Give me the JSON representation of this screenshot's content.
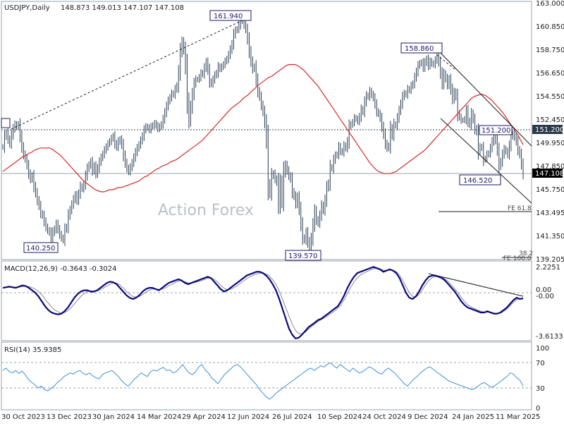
{
  "chart_data": [
    {
      "type": "candlestick",
      "title": "USDJPY,Daily",
      "ohlc_label": "148.873 149.013 147.107 147.108",
      "watermark": "Action Forex",
      "y_ticks": [
        "163.000",
        "160.850",
        "158.750",
        "156.650",
        "154.550",
        "152.450",
        "151.200",
        "149.950",
        "147.850",
        "147.108",
        "145.750",
        "143.495",
        "141.350",
        "139.205"
      ],
      "ylim": [
        139.205,
        163.0
      ],
      "x_tick_labels": [
        "30 Oct 2023",
        "13 Dec 2023",
        "30 Jan 2024",
        "14 Mar 2024",
        "29 Apr 2024",
        "12 Jun 2024",
        "26 Jul 2024",
        "10 Sep 2024",
        "24 Oct 2024",
        "9 Dec 2024",
        "24 Jan 2025",
        "11 Mar 2025"
      ],
      "close_series": [
        149.6,
        150.6,
        150.9,
        150.3,
        149.9,
        150.7,
        151.3,
        151.7,
        151.5,
        151.7,
        150.6,
        149.6,
        148.9,
        148.5,
        147.9,
        147.1,
        146.6,
        146.9,
        145.9,
        145.3,
        144.6,
        144.1,
        143.4,
        143.2,
        142.6,
        142.1,
        141.8,
        141.6,
        140.8,
        141.6,
        141.9,
        142.4,
        141.9,
        141.4,
        141.1,
        140.9,
        141.9,
        142.1,
        143.2,
        143.7,
        144.2,
        144.7,
        145.1,
        144.6,
        145.2,
        145.9,
        145.7,
        146.1,
        146.9,
        147.6,
        147.9,
        148.2,
        147.4,
        147.8,
        147.1,
        147.6,
        148.2,
        148.6,
        148.9,
        149.3,
        149.6,
        149.9,
        150.1,
        150.4,
        150.6,
        149.9,
        149.6,
        150.1,
        150.3,
        149.8,
        148.8,
        148.1,
        147.6,
        147.3,
        147.7,
        148.1,
        148.6,
        149.1,
        149.5,
        149.8,
        150.2,
        150.6,
        151.2,
        151.5,
        151.4,
        151.2,
        151.5,
        151.6,
        151.8,
        151.6,
        151.3,
        151.5,
        151.7,
        152.2,
        152.8,
        153.4,
        153.9,
        154.2,
        154.6,
        154.5,
        155.0,
        155.3,
        156.6,
        158.5,
        159.4,
        158.7,
        157.1,
        153.9,
        152.1,
        153.3,
        154.5,
        155.5,
        155.9,
        155.9,
        156.1,
        156.5,
        156.4,
        157.0,
        157.5,
        156.8,
        155.7,
        155.5,
        155.9,
        156.3,
        156.5,
        157.1,
        156.9,
        157.1,
        157.3,
        157.6,
        157.8,
        158.2,
        158.7,
        159.2,
        160.1,
        160.5,
        160.6,
        161.0,
        161.6,
        161.4,
        161.0,
        160.6,
        159.7,
        158.5,
        157.6,
        156.9,
        157.1,
        155.9,
        154.8,
        154.3,
        153.5,
        152.9,
        151.9,
        150.2,
        146.1,
        145.3,
        146.9,
        147.1,
        146.6,
        146.3,
        144.2,
        146.2,
        144.6,
        147.2,
        147.9,
        147.4,
        146.9,
        146.6,
        145.4,
        145.0,
        144.3,
        144.9,
        143.8,
        142.4,
        141.1,
        140.9,
        141.6,
        140.7,
        139.9,
        141.0,
        142.3,
        143.6,
        142.8,
        142.5,
        143.2,
        144.1,
        143.7,
        144.6,
        145.8,
        146.2,
        147.7,
        147.6,
        148.4,
        148.8,
        148.9,
        149.6,
        149.2,
        149.1,
        149.7,
        149.5,
        150.1,
        151.5,
        151.7,
        151.9,
        152.3,
        152.2,
        152.0,
        152.4,
        153.1,
        152.9,
        153.8,
        154.4,
        154.3,
        154.8,
        154.5,
        154.2,
        153.6,
        152.9,
        152.7,
        152.3,
        151.5,
        150.8,
        149.9,
        149.5,
        149.7,
        151.3,
        150.7,
        151.7,
        151.6,
        152.3,
        153.0,
        153.6,
        154.3,
        154.6,
        154.5,
        155.0,
        154.9,
        155.3,
        155.5,
        156.1,
        156.6,
        157.2,
        157.4,
        157.5,
        157.0,
        157.5,
        157.8,
        157.2,
        157.6,
        157.4,
        157.3,
        157.7,
        158.0,
        157.5,
        156.5,
        155.5,
        156.4,
        156.0,
        155.4,
        155.9,
        155.0,
        154.1,
        154.7,
        154.3,
        152.7,
        152.4,
        152.1,
        152.1,
        152.2,
        153.0,
        152.0,
        151.7,
        152.7,
        152.2,
        151.3,
        151.0,
        149.2,
        149.6,
        149.5,
        148.4,
        148.5,
        148.9,
        149.0,
        149.5,
        150.1,
        150.6,
        150.2,
        149.3,
        147.8,
        148.2,
        148.9,
        149.4,
        149.2,
        148.9,
        149.7,
        150.6,
        150.8,
        150.5,
        150.1,
        149.3,
        148.9,
        148.0,
        147.1
      ],
      "ma_series": [
        147.3,
        147.5,
        147.7,
        147.9,
        148.1,
        148.3,
        148.5,
        148.7,
        148.8,
        149.0,
        149.1,
        149.3,
        149.4,
        149.5,
        149.5,
        149.5,
        149.5,
        149.4,
        149.2,
        149.0,
        148.8,
        148.5,
        148.2,
        147.9,
        147.6,
        147.3,
        147.0,
        146.7,
        146.4,
        146.2,
        146.0,
        145.8,
        145.6,
        145.5,
        145.4,
        145.4,
        145.5,
        145.6,
        145.6,
        145.7,
        145.8,
        145.8,
        145.9,
        146.0,
        146.1,
        146.2,
        146.3,
        146.4,
        146.6,
        146.8,
        146.9,
        147.1,
        147.3,
        147.5,
        147.6,
        147.8,
        147.9,
        148.0,
        148.2,
        148.3,
        148.4,
        148.6,
        148.8,
        149.0,
        149.2,
        149.4,
        149.6,
        149.8,
        150.0,
        150.2,
        150.5,
        150.8,
        151.1,
        151.4,
        151.7,
        152.0,
        152.3,
        152.6,
        152.9,
        153.2,
        153.4,
        153.6,
        153.8,
        154.1,
        154.3,
        154.5,
        154.8,
        155.0,
        155.3,
        155.5,
        155.7,
        155.9,
        156.1,
        156.2,
        156.4,
        156.6,
        156.8,
        157.0,
        157.2,
        157.3,
        157.3,
        157.3,
        157.2,
        157.0,
        156.8,
        156.5,
        156.2,
        155.9,
        155.6,
        155.3,
        154.9,
        154.5,
        154.1,
        153.7,
        153.3,
        152.9,
        152.5,
        152.1,
        151.7,
        151.3,
        150.9,
        150.5,
        150.1,
        149.7,
        149.3,
        148.9,
        148.5,
        148.1,
        147.8,
        147.5,
        147.3,
        147.2,
        147.1,
        147.1,
        147.1,
        147.2,
        147.3,
        147.5,
        147.7,
        147.9,
        148.1,
        148.3,
        148.5,
        148.7,
        148.9,
        149.1,
        149.3,
        149.6,
        149.9,
        150.2,
        150.5,
        150.8,
        151.1,
        151.4,
        151.7,
        152.0,
        152.3,
        152.6,
        152.9,
        153.2,
        153.5,
        153.8,
        154.1,
        154.3,
        154.4,
        154.5,
        154.5,
        154.4,
        154.2,
        154.0,
        153.7,
        153.4,
        153.1,
        152.8,
        152.4,
        152.0,
        151.6,
        151.2,
        150.8,
        150.3,
        149.8
      ],
      "macd": {
        "label": "MACD(12,26,9) -0.3643 -0.3024",
        "y_ticks": [
          "2.2251",
          "0.00",
          "-0.00",
          "-3.6133"
        ],
        "ylim": [
          -3.6133,
          2.2251
        ],
        "macd_series": [
          0.5,
          0.55,
          0.6,
          0.55,
          0.5,
          0.6,
          0.7,
          0.65,
          0.5,
          0.3,
          0.1,
          -0.2,
          -0.6,
          -1.0,
          -1.3,
          -1.5,
          -1.6,
          -1.65,
          -1.6,
          -1.4,
          -1.1,
          -0.7,
          -0.3,
          0.0,
          0.2,
          0.3,
          0.3,
          0.2,
          0.2,
          0.3,
          0.5,
          0.7,
          0.9,
          1.0,
          0.95,
          0.8,
          0.5,
          0.2,
          -0.1,
          -0.3,
          -0.4,
          -0.3,
          -0.1,
          0.2,
          0.4,
          0.5,
          0.5,
          0.4,
          0.3,
          0.5,
          0.7,
          0.9,
          1.0,
          1.1,
          1.2,
          1.1,
          0.9,
          0.8,
          0.9,
          1.0,
          1.1,
          1.2,
          1.3,
          1.4,
          1.3,
          1.0,
          0.7,
          0.4,
          0.2,
          0.3,
          0.5,
          0.7,
          0.9,
          1.1,
          1.3,
          1.5,
          1.6,
          1.7,
          1.8,
          1.8,
          1.7,
          1.5,
          1.2,
          0.8,
          0.3,
          -0.4,
          -1.2,
          -2.0,
          -2.8,
          -3.3,
          -3.6,
          -3.55,
          -3.3,
          -3.0,
          -2.7,
          -2.5,
          -2.3,
          -2.1,
          -2.0,
          -1.8,
          -1.6,
          -1.4,
          -1.2,
          -1.0,
          -0.6,
          -0.1,
          0.5,
          1.0,
          1.4,
          1.7,
          1.8,
          1.9,
          2.0,
          2.1,
          2.2,
          2.1,
          2.0,
          1.8,
          1.9,
          2.0,
          1.9,
          1.7,
          1.3,
          0.7,
          0.1,
          -0.3,
          -0.4,
          -0.2,
          0.2,
          0.7,
          1.1,
          1.4,
          1.5,
          1.5,
          1.4,
          1.3,
          1.1,
          0.8,
          0.5,
          0.2,
          -0.2,
          -0.6,
          -0.9,
          -1.1,
          -1.2,
          -1.3,
          -1.4,
          -1.5,
          -1.5,
          -1.4,
          -1.5,
          -1.6,
          -1.6,
          -1.5,
          -1.3,
          -1.1,
          -0.8,
          -0.5,
          -0.3,
          -0.4,
          -0.35
        ],
        "signal_series": [
          0.5,
          0.52,
          0.55,
          0.56,
          0.55,
          0.56,
          0.6,
          0.62,
          0.6,
          0.52,
          0.4,
          0.2,
          -0.05,
          -0.4,
          -0.75,
          -1.05,
          -1.3,
          -1.45,
          -1.55,
          -1.5,
          -1.35,
          -1.1,
          -0.8,
          -0.5,
          -0.2,
          0.05,
          0.2,
          0.25,
          0.25,
          0.25,
          0.35,
          0.5,
          0.65,
          0.8,
          0.9,
          0.9,
          0.75,
          0.5,
          0.2,
          0.0,
          -0.2,
          -0.25,
          -0.2,
          -0.05,
          0.15,
          0.3,
          0.4,
          0.42,
          0.38,
          0.4,
          0.5,
          0.65,
          0.8,
          0.92,
          1.05,
          1.08,
          1.0,
          0.9,
          0.88,
          0.93,
          1.0,
          1.08,
          1.18,
          1.28,
          1.3,
          1.2,
          0.98,
          0.72,
          0.48,
          0.35,
          0.38,
          0.5,
          0.65,
          0.85,
          1.05,
          1.25,
          1.4,
          1.52,
          1.62,
          1.7,
          1.7,
          1.62,
          1.45,
          1.15,
          0.78,
          0.25,
          -0.4,
          -1.1,
          -1.8,
          -2.45,
          -2.95,
          -3.2,
          -3.25,
          -3.1,
          -2.85,
          -2.62,
          -2.42,
          -2.22,
          -2.08,
          -1.92,
          -1.75,
          -1.57,
          -1.38,
          -1.17,
          -0.87,
          -0.45,
          0.05,
          0.55,
          0.98,
          1.32,
          1.55,
          1.7,
          1.82,
          1.95,
          2.05,
          2.08,
          2.05,
          1.93,
          1.92,
          1.95,
          1.93,
          1.82,
          1.55,
          1.12,
          0.6,
          0.12,
          -0.18,
          -0.25,
          -0.05,
          0.35,
          0.75,
          1.1,
          1.32,
          1.42,
          1.42,
          1.36,
          1.22,
          1.0,
          0.72,
          0.42,
          0.1,
          -0.28,
          -0.62,
          -0.88,
          -1.05,
          -1.18,
          -1.3,
          -1.4,
          -1.45,
          -1.44,
          -1.46,
          -1.53,
          -1.57,
          -1.55,
          -1.42,
          -1.22,
          -0.95,
          -0.68,
          -0.45,
          -0.4,
          -0.3
        ]
      },
      "rsi": {
        "label": "RSI(14) 35.9385",
        "y_ticks": [
          "100",
          "70",
          "30",
          "0"
        ],
        "ylim": [
          0,
          100
        ],
        "levels": [
          70,
          30
        ],
        "series": [
          62,
          66,
          60,
          58,
          62,
          57,
          61,
          55,
          47,
          42,
          38,
          33,
          36,
          30,
          28,
          32,
          36,
          42,
          46,
          52,
          55,
          58,
          56,
          60,
          62,
          57,
          55,
          58,
          53,
          50,
          48,
          55,
          58,
          60,
          62,
          57,
          52,
          45,
          40,
          36,
          41,
          48,
          52,
          58,
          55,
          52,
          60,
          63,
          61,
          65,
          67,
          62,
          63,
          58,
          60,
          66,
          72,
          64,
          58,
          55,
          60,
          68,
          72,
          63,
          58,
          50,
          45,
          40,
          48,
          55,
          60,
          65,
          70,
          72,
          68,
          62,
          56,
          50,
          44,
          38,
          30,
          24,
          18,
          14,
          18,
          24,
          28,
          32,
          36,
          40,
          44,
          48,
          52,
          56,
          60,
          64,
          66,
          62,
          66,
          70,
          68,
          72,
          75,
          70,
          66,
          72,
          68,
          64,
          60,
          66,
          62,
          58,
          60,
          64,
          68,
          66,
          62,
          58,
          56,
          62,
          66,
          62,
          58,
          52,
          46,
          40,
          36,
          42,
          48,
          52,
          58,
          62,
          66,
          68,
          64,
          60,
          56,
          52,
          48,
          44,
          42,
          40,
          38,
          36,
          34,
          32,
          30,
          32,
          36,
          40,
          42,
          38,
          34,
          36,
          40,
          44,
          48,
          52,
          58,
          56,
          50,
          46,
          36
        ],
        "label_ticks": [
          "30 Oct 2023",
          "13 Dec 2023",
          "30 Jan 2024",
          "14 Mar 2024",
          "29 Apr 2024",
          "12 Jun 2024",
          "26 Jul 2024",
          "10 Sep 2024",
          "24 Oct 2024",
          "9 Dec 2024",
          "24 Jan 2025",
          "11 Mar 2025"
        ]
      },
      "annotations": [
        {
          "text": "161.940",
          "kind": "high"
        },
        {
          "text": "158.860",
          "kind": "high"
        },
        {
          "text": "151.200",
          "kind": "level"
        },
        {
          "text": "146.520",
          "kind": "low"
        },
        {
          "text": "140.250",
          "kind": "low"
        },
        {
          "text": "139.570",
          "kind": "low"
        },
        {
          "text": "FE 61.8",
          "kind": "fib"
        },
        {
          "text": "FE 100.0",
          "kind": "fib"
        },
        {
          "text": "38.2",
          "kind": "fib"
        }
      ],
      "price_tags": {
        "level": "151.200",
        "last": "147.108"
      },
      "colors": {
        "bars": "#2a3f55",
        "ma": "#d62a2a",
        "macd": "#0a0a7a",
        "signal": "#8a8a9a",
        "rsi": "#3b8fd6",
        "label_box": "#1a1a6a",
        "tag_bg": "#2b3a4a"
      }
    }
  ]
}
